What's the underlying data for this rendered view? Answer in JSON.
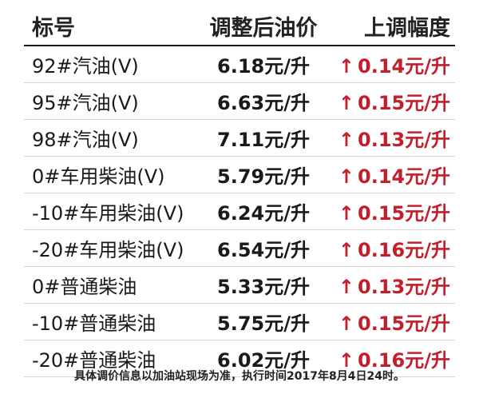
{
  "header": {
    "col_name": "标号",
    "col_price": "调整后油价",
    "col_change": "上调幅度"
  },
  "arrow_glyph": "↑",
  "accent_color": "#c41e2a",
  "rows": [
    {
      "name": "92#汽油(V)",
      "price": "6.18元/升",
      "change": "0.14元/升"
    },
    {
      "name": "95#汽油(V)",
      "price": "6.63元/升",
      "change": "0.15元/升"
    },
    {
      "name": "98#汽油(V)",
      "price": "7.11元/升",
      "change": "0.13元/升"
    },
    {
      "name": "0#车用柴油(V)",
      "price": "5.79元/升",
      "change": "0.14元/升"
    },
    {
      "name": "-10#车用柴油(V)",
      "price": "6.24元/升",
      "change": "0.15元/升"
    },
    {
      "name": "-20#车用柴油(V)",
      "price": "6.54元/升",
      "change": "0.16元/升"
    },
    {
      "name": "0#普通柴油",
      "price": "5.33元/升",
      "change": "0.13元/升"
    },
    {
      "name": "-10#普通柴油",
      "price": "5.75元/升",
      "change": "0.15元/升"
    },
    {
      "name": "-20#普通柴油",
      "price": "6.02元/升",
      "change": "0.16元/升"
    }
  ],
  "footnote": "具体调价信息以加油站现场为准，执行时间2017年8月4日24时。"
}
